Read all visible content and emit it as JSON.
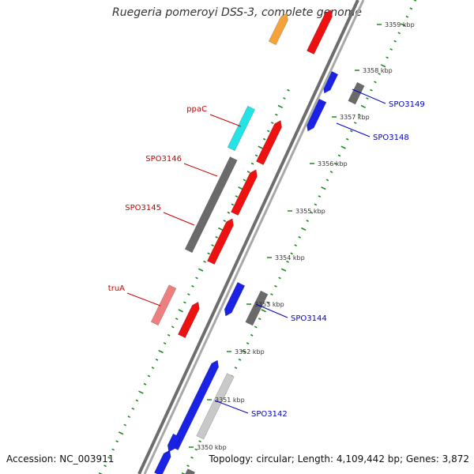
{
  "title": "Ruegeria pomeroyi DSS-3, complete genome",
  "footer": {
    "accession": "Accession: NC_003911",
    "summary": "Topology: circular; Length: 4,109,442 bp; Genes: 3,872"
  },
  "colors": {
    "backbone": "#8c8c8c",
    "ticks": "#1e8a1e",
    "label_forward": "#cc0000",
    "label_reverse": "#0000cc"
  },
  "kbp_ticks": [
    {
      "label": "3359 kbp",
      "kbp": 3359
    },
    {
      "label": "3358 kbp",
      "kbp": 3358
    },
    {
      "label": "3357 kbp",
      "kbp": 3357
    },
    {
      "label": "3356 kbp",
      "kbp": 3356
    },
    {
      "label": "3355 kbp",
      "kbp": 3355
    },
    {
      "label": "3354 kbp",
      "kbp": 3354
    },
    {
      "label": "3353 kbp",
      "kbp": 3353
    },
    {
      "label": "3352 kbp",
      "kbp": 3352
    },
    {
      "label": "3351 kbp",
      "kbp": 3351
    },
    {
      "label": "3350 kbp",
      "kbp": 3350
    }
  ],
  "gene_labels": [
    {
      "name": "ppaC",
      "strand": "forward"
    },
    {
      "name": "SPO3146",
      "strand": "forward"
    },
    {
      "name": "SPO3145",
      "strand": "forward"
    },
    {
      "name": "truA",
      "strand": "forward"
    },
    {
      "name": "SPO3149",
      "strand": "reverse"
    },
    {
      "name": "SPO3148",
      "strand": "reverse"
    },
    {
      "name": "SPO3144",
      "strand": "reverse"
    },
    {
      "name": "SPO3142",
      "strand": "reverse"
    }
  ]
}
